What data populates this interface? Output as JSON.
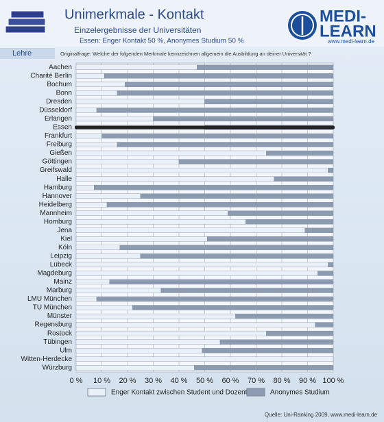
{
  "chart_data": {
    "type": "stacked_bar_horizontal",
    "title": "Unimerkmale - Kontakt",
    "subtitle": "Einzelergebnisse der Universitäten",
    "annotation": "Essen: Enger Kontakt 50 %, Anonymes Studium 50 %",
    "section": "Lehre",
    "question": "Originalfrage: Welche der folgenden Merkmale kennzeichnen allgemein die Ausbildung an deiner Universität ?",
    "source": "Quelle: Uni-Ranking 2009, www.medi-learn.de",
    "logo": [
      "MEDI-",
      "LEARN"
    ],
    "logo_url": "www.medi-learn.de",
    "highlight": "Essen",
    "categories": [
      "Aachen",
      "Charité Berlin",
      "Bochum",
      "Bonn",
      "Dresden",
      "Düsseldorf",
      "Erlangen",
      "Essen",
      "Frankfurt",
      "Freiburg",
      "Gießen",
      "Göttingen",
      "Greifswald",
      "Halle",
      "Hamburg",
      "Hannover",
      "Heidelberg",
      "Mannheim",
      "Homburg",
      "Jena",
      "Kiel",
      "Köln",
      "Leipzig",
      "Lübeck",
      "Magdeburg",
      "Mainz",
      "Marburg",
      "LMU München",
      "TU München",
      "Münster",
      "Regensburg",
      "Rostock",
      "Tübingen",
      "Ulm",
      "Witten-Herdecke",
      "Würzburg"
    ],
    "series": [
      {
        "name": "Enger Kontakt zwischen Student und Dozent",
        "color": "#eaf0f7",
        "values": [
          47,
          11,
          19,
          16,
          50,
          8,
          30,
          50,
          10,
          16,
          74,
          40,
          98,
          77,
          7,
          25,
          12,
          59,
          66,
          89,
          51,
          17,
          25,
          98,
          94,
          13,
          33,
          8,
          22,
          62,
          93,
          74,
          56,
          49,
          100,
          46
        ]
      },
      {
        "name": "Anonymes Studium",
        "color": "#8d9bb0",
        "values": [
          53,
          89,
          81,
          84,
          50,
          92,
          70,
          50,
          90,
          84,
          26,
          60,
          2,
          23,
          93,
          75,
          88,
          41,
          34,
          11,
          49,
          83,
          75,
          2,
          6,
          87,
          67,
          92,
          78,
          38,
          7,
          26,
          44,
          51,
          0,
          54
        ]
      }
    ],
    "xlim": [
      0,
      100
    ],
    "xticks": [
      {
        "value": 0,
        "label": "0 %"
      },
      {
        "value": 10,
        "label": "10 %"
      },
      {
        "value": 20,
        "label": "20 %"
      },
      {
        "value": 30,
        "label": "30 %"
      },
      {
        "value": 40,
        "label": "40 %"
      },
      {
        "value": 50,
        "label": "50 %"
      },
      {
        "value": 60,
        "label": "60 %"
      },
      {
        "value": 70,
        "label": "70 %"
      },
      {
        "value": 80,
        "label": "80 %"
      },
      {
        "value": 90,
        "label": "90 %"
      },
      {
        "value": 100,
        "label": "100 %"
      }
    ],
    "grid": true
  }
}
